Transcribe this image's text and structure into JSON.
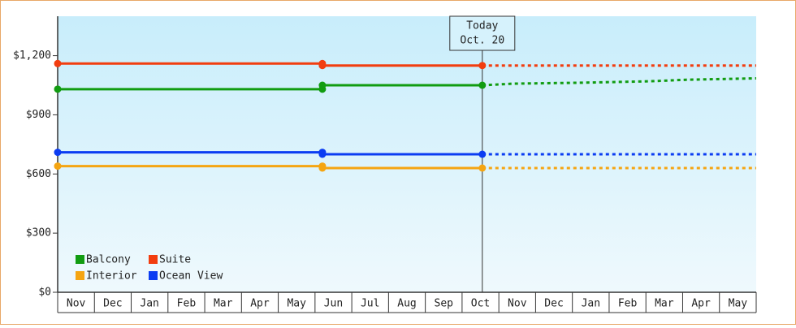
{
  "chart_data": {
    "type": "line",
    "categories": [
      "Nov",
      "Dec",
      "Jan",
      "Feb",
      "Mar",
      "Apr",
      "May",
      "Jun",
      "Jul",
      "Aug",
      "Sep",
      "Oct",
      "Nov",
      "Dec",
      "Jan",
      "Feb",
      "Mar",
      "Apr",
      "May"
    ],
    "xlim": [
      0,
      19
    ],
    "ylim": [
      0,
      1400
    ],
    "yticks": [
      {
        "value": 0,
        "label": "$0"
      },
      {
        "value": 300,
        "label": "$300"
      },
      {
        "value": 600,
        "label": "$600"
      },
      {
        "value": 900,
        "label": "$900"
      },
      {
        "value": 1200,
        "label": "$1,200"
      }
    ],
    "today": {
      "x": 11.55,
      "label": "Today",
      "date": "Oct. 20"
    },
    "series": [
      {
        "name": "Balcony",
        "color": "#119c11",
        "x": [
          0,
          7.2,
          7.2,
          11.55
        ],
        "values": [
          1030,
          1030,
          1050,
          1050
        ],
        "forecast": {
          "x": [
            11.55,
            12.4,
            14.3,
            16.1,
            17.1,
            19
          ],
          "values": [
            1050,
            1058,
            1063,
            1070,
            1078,
            1085
          ]
        }
      },
      {
        "name": "Suite",
        "color": "#f23d0f",
        "x": [
          0,
          7.2,
          7.2,
          11.55
        ],
        "values": [
          1160,
          1160,
          1150,
          1150
        ],
        "forecast": {
          "x": [
            11.55,
            19
          ],
          "values": [
            1150,
            1150
          ]
        }
      },
      {
        "name": "Interior",
        "color": "#f5a512",
        "x": [
          0,
          7.2,
          7.2,
          11.55
        ],
        "values": [
          640,
          640,
          630,
          630
        ],
        "forecast": {
          "x": [
            11.55,
            19
          ],
          "values": [
            630,
            630
          ]
        }
      },
      {
        "name": "Ocean View",
        "color": "#0b3cf2",
        "x": [
          0,
          7.2,
          7.2,
          11.55
        ],
        "values": [
          710,
          710,
          700,
          700
        ],
        "forecast": {
          "x": [
            11.55,
            19
          ],
          "values": [
            700,
            700
          ]
        }
      }
    ]
  }
}
